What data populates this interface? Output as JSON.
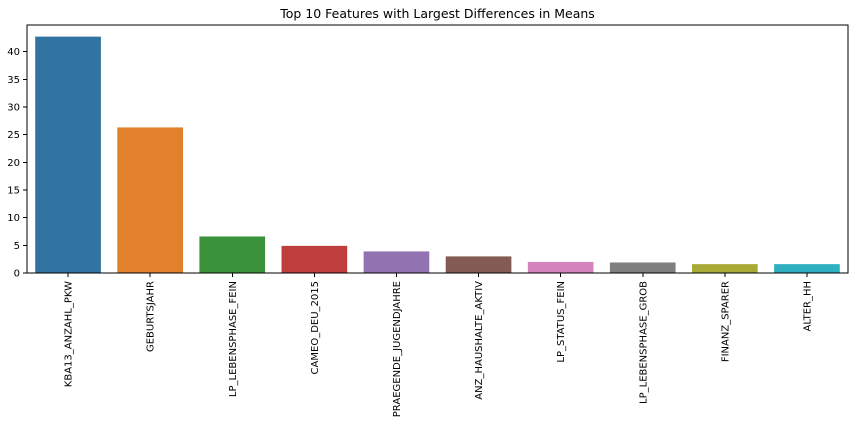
{
  "chart_data": {
    "type": "bar",
    "title": "Top 10 Features with Largest Differences in Means",
    "xlabel": "",
    "ylabel": "",
    "categories": [
      "KBA13_ANZAHL_PKW",
      "GEBURTSJAHR",
      "LP_LEBENSPHASE_FEIN",
      "CAMEO_DEU_2015",
      "PRAEGENDE_JUGENDJAHRE",
      "ANZ_HAUSHALTE_AKTIV",
      "LP_STATUS_FEIN",
      "LP_LEBENSPHASE_GROB",
      "FINANZ_SPARER",
      "ALTER_HH"
    ],
    "values": [
      42.7,
      26.3,
      6.6,
      4.9,
      3.9,
      3.0,
      2.0,
      1.9,
      1.6,
      1.6
    ],
    "colors": [
      "#3274a1",
      "#e1812c",
      "#3a923a",
      "#c03d3e",
      "#9372b2",
      "#845b53",
      "#d684bd",
      "#7f7f7f",
      "#a9aa35",
      "#2eb0c0"
    ],
    "yticks": [
      0,
      5,
      10,
      15,
      20,
      25,
      30,
      35,
      40
    ],
    "ylim": [
      0,
      44.8
    ],
    "grid": false,
    "legend": "none"
  }
}
